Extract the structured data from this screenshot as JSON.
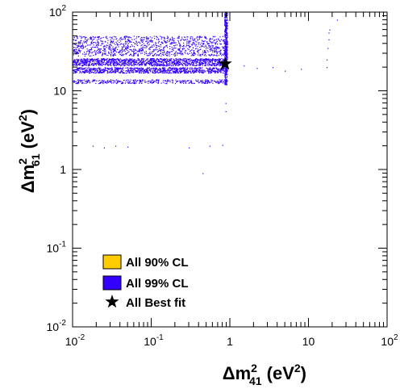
{
  "chart_data": {
    "type": "scatter",
    "x_scale": "log",
    "y_scale": "log",
    "xlim": [
      0.01,
      100
    ],
    "ylim": [
      0.01,
      100
    ],
    "xlabel": {
      "delta": "Δ",
      "base": "m",
      "sup": "2",
      "sub": "41",
      "unit_open": " (eV",
      "unit_sup": "2",
      "unit_close": ")"
    },
    "ylabel": {
      "delta": "Δ",
      "base": "m",
      "sup": "2",
      "sub": "61",
      "unit_open": " (eV",
      "unit_sup": "2",
      "unit_close": ")"
    },
    "x_ticks": [
      {
        "value": 0.01,
        "base": "10",
        "exp": "-2"
      },
      {
        "value": 0.1,
        "base": "10",
        "exp": "-1"
      },
      {
        "value": 1,
        "base": "1",
        "exp": ""
      },
      {
        "value": 10,
        "base": "10",
        "exp": ""
      },
      {
        "value": 100,
        "base": "10",
        "exp": "2"
      }
    ],
    "y_ticks": [
      {
        "value": 0.01,
        "base": "10",
        "exp": "-2"
      },
      {
        "value": 0.1,
        "base": "10",
        "exp": "-1"
      },
      {
        "value": 1,
        "base": "1",
        "exp": ""
      },
      {
        "value": 10,
        "base": "10",
        "exp": ""
      },
      {
        "value": 100,
        "base": "10",
        "exp": "2"
      }
    ],
    "legend_position": "bottom-left",
    "series": [
      {
        "name": "All 90% CL",
        "color": "#ffcc00",
        "marker": "box"
      },
      {
        "name": "All 99% CL",
        "color": "#3300ff",
        "marker": "box",
        "regions": [
          {
            "x_range": [
              0.01,
              0.9
            ],
            "y_range": [
              17,
              20
            ]
          },
          {
            "x_range": [
              0.01,
              0.9
            ],
            "y_range": [
              21,
              26
            ]
          },
          {
            "x_range": [
              0.01,
              0.9
            ],
            "y_range": [
              12.5,
              14
            ]
          },
          {
            "x_range": [
              0.01,
              0.9
            ],
            "y_range": [
              28,
              50
            ]
          },
          {
            "x_range": [
              0.85,
              0.92
            ],
            "y_range": [
              12,
              100
            ]
          }
        ],
        "scattered_points": [
          {
            "x": 0.45,
            "y": 0.9
          },
          {
            "x": 0.018,
            "y": 2.0
          },
          {
            "x": 0.025,
            "y": 1.9
          },
          {
            "x": 0.035,
            "y": 2.0
          },
          {
            "x": 0.05,
            "y": 1.95
          },
          {
            "x": 0.3,
            "y": 1.9
          },
          {
            "x": 0.55,
            "y": 2.0
          },
          {
            "x": 0.8,
            "y": 2.05
          },
          {
            "x": 0.88,
            "y": 5.5
          },
          {
            "x": 0.88,
            "y": 7
          },
          {
            "x": 1.5,
            "y": 21
          },
          {
            "x": 2.2,
            "y": 19.5
          },
          {
            "x": 3.5,
            "y": 20
          },
          {
            "x": 5,
            "y": 18
          },
          {
            "x": 8,
            "y": 19
          },
          {
            "x": 17,
            "y": 20
          },
          {
            "x": 17,
            "y": 25
          },
          {
            "x": 17.5,
            "y": 35
          },
          {
            "x": 18,
            "y": 45
          },
          {
            "x": 18,
            "y": 55
          },
          {
            "x": 18.5,
            "y": 60
          },
          {
            "x": 23,
            "y": 80
          }
        ]
      },
      {
        "name": "All Best fit",
        "color": "#000000",
        "marker": "star",
        "points": [
          {
            "x": 0.87,
            "y": 22
          }
        ]
      }
    ]
  }
}
